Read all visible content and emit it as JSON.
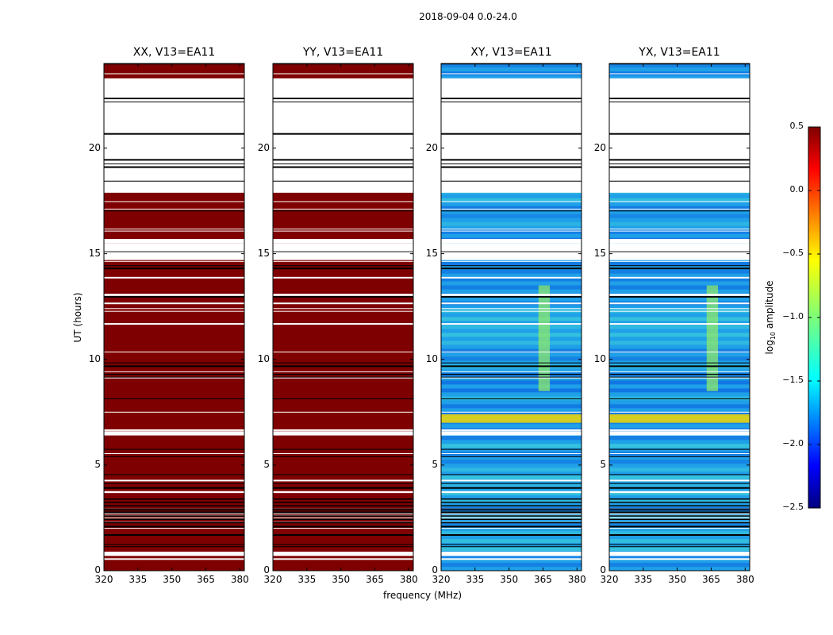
{
  "chart_data": {
    "type": "heatmap",
    "suptitle": "2018-09-04 0.0-24.0",
    "xlabel": "frequency (MHz)",
    "ylabel": "UT (hours)",
    "xlim": [
      320,
      382
    ],
    "ylim": [
      0,
      24
    ],
    "xticks": [
      "320",
      "335",
      "350",
      "365",
      "380"
    ],
    "yticks": [
      "0",
      "5",
      "10",
      "15",
      "20"
    ],
    "panels": [
      {
        "title": "XX, V13=EA11",
        "fill": "saturated",
        "dominant_value": 0.5
      },
      {
        "title": "YY, V13=EA11",
        "fill": "saturated",
        "dominant_value": 0.5
      },
      {
        "title": "XY, V13=EA11",
        "fill": "noise",
        "dominant_value": -1.5,
        "bright_band_mhz": [
          363,
          368
        ]
      },
      {
        "title": "YX, V13=EA11",
        "fill": "noise",
        "dominant_value": -1.5,
        "bright_band_mhz": [
          363,
          368
        ]
      }
    ],
    "flagged_hours": [
      [
        17.9,
        23.3
      ],
      [
        15.5,
        15.7
      ],
      [
        14.7,
        15.5
      ],
      [
        18.1,
        19.6
      ],
      [
        6.4,
        6.6
      ],
      [
        0.7,
        0.9
      ]
    ],
    "colorbar": {
      "label": "log",
      "label_sub": "10",
      "label_rest": " amplitude",
      "min": -2.5,
      "max": 0.5,
      "ticks": [
        "0.5",
        "0.0",
        "−0.5",
        "−1.0",
        "−1.5",
        "−2.0",
        "−2.5"
      ]
    }
  },
  "colors": {
    "saturated": "#7f0000",
    "noise_a": "#1fa0e8",
    "noise_b": "#44d8d8",
    "noise_c": "#0a60e0",
    "flag": "#ffffff",
    "gap": "#000000"
  }
}
